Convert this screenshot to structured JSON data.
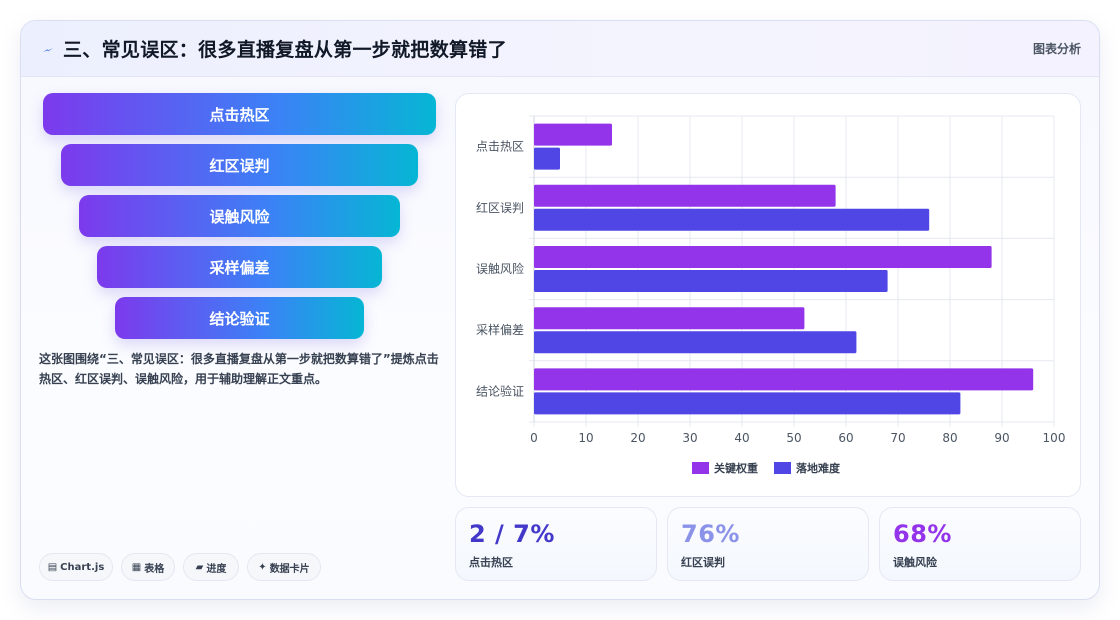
{
  "header": {
    "title": "三、常见误区：很多直播复盘从第一步就把数算错了",
    "tag": "图表分析"
  },
  "funnel": {
    "items": [
      "点击热区",
      "红区误判",
      "误触风险",
      "采样偏差",
      "结论验证"
    ]
  },
  "description": "这张图围绕“三、常见误区：很多直播复盘从第一步就把数算错了”提炼点击热区、红区误判、误触风险，用于辅助理解正文重点。",
  "chips": [
    {
      "icon": "▤",
      "label": "Chart.js"
    },
    {
      "icon": "▦",
      "label": "表格"
    },
    {
      "icon": "▰",
      "label": "进度"
    },
    {
      "icon": "✦",
      "label": "数据卡片"
    }
  ],
  "chart_data": {
    "type": "bar",
    "orientation": "horizontal",
    "categories": [
      "点击热区",
      "红区误判",
      "误触风险",
      "采样偏差",
      "结论验证"
    ],
    "series": [
      {
        "name": "关键权重",
        "values": [
          15,
          58,
          88,
          52,
          96
        ],
        "color": "#9333ea"
      },
      {
        "name": "落地难度",
        "values": [
          5,
          76,
          68,
          62,
          82
        ],
        "color": "#4f46e5"
      }
    ],
    "xlim": [
      0,
      100
    ],
    "xticks": [
      0,
      10,
      20,
      30,
      40,
      50,
      60,
      70,
      80,
      90,
      100
    ],
    "grid": true,
    "legend_position": "bottom"
  },
  "stats": [
    {
      "value": "2 / 7%",
      "label": "点击热区",
      "color": "#4338ca"
    },
    {
      "value": "76%",
      "label": "红区误判",
      "color": "#8b93e8"
    },
    {
      "value": "68%",
      "label": "误触风险",
      "color": "#9333ea"
    }
  ]
}
